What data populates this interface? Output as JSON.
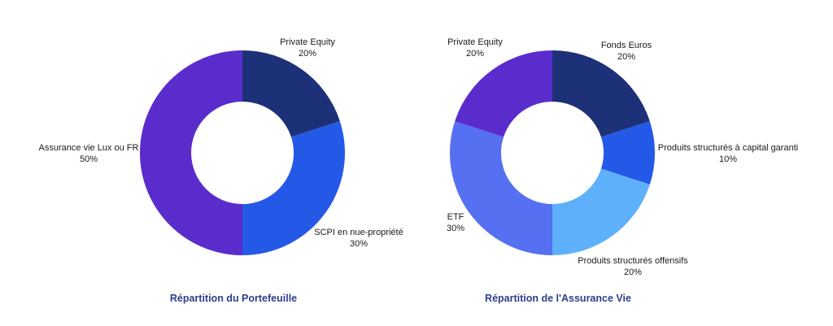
{
  "chart_data": [
    {
      "type": "pie",
      "title": "Répartition du Portefeuille",
      "labels": [
        "Private Equity",
        "SCPI en nue-propriété",
        "Assurance vie Lux ou FR"
      ],
      "values": [
        20,
        30,
        50
      ],
      "value_labels": [
        "20%",
        "30%",
        "50%"
      ],
      "colors": [
        "#1c3178",
        "#2459e8",
        "#5b2ccc"
      ],
      "donut": true
    },
    {
      "type": "pie",
      "title": "Répartition de l'Assurance Vie",
      "labels": [
        "Fonds Euros",
        "Produits structurés à capital garanti",
        "Produits structurés offensifs",
        "ETF",
        "Private Equity"
      ],
      "values": [
        20,
        10,
        20,
        30,
        20
      ],
      "value_labels": [
        "20%",
        "10%",
        "20%",
        "30%",
        "20%"
      ],
      "colors": [
        "#1c3178",
        "#2459e8",
        "#5fb0fb",
        "#5570f0",
        "#5b2ccc"
      ],
      "donut": true
    }
  ],
  "caption_color": "#2c3f8c"
}
